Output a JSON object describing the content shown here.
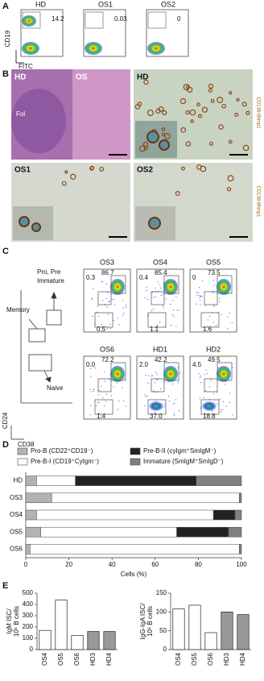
{
  "panel_a": {
    "label": "A",
    "y_label": "CD19",
    "x_label": "FITC",
    "plots": [
      {
        "title": "HD",
        "gate": "14.2"
      },
      {
        "title": "OS1",
        "gate": "0.03"
      },
      {
        "title": "OS2",
        "gate": "0"
      }
    ]
  },
  "panel_b": {
    "label": "B",
    "he_left": "HD",
    "he_right": "OS",
    "fol": "Fol",
    "ihc_hd": "HD",
    "ihc_os1": "OS1",
    "ihc_os2": "OS2",
    "stain_top": "CD138-Blimp1",
    "stain_bottom": "CD138-Blimp1"
  },
  "panel_c": {
    "label": "C",
    "schematic": {
      "top": "Pro, Pre",
      "top2": "Immature",
      "memory": "Memory",
      "naive": "Naive",
      "y_axis": "CD24",
      "x_axis": "CD38"
    },
    "plots": [
      {
        "title": "OS3",
        "top_left": "0.3",
        "top_right": "86.7",
        "bottom": "0.5"
      },
      {
        "title": "OS4",
        "top_left": "0.4",
        "top_right": "85.4",
        "bottom": "1.1"
      },
      {
        "title": "OS5",
        "top_left": "0",
        "top_right": "73.5",
        "bottom": "1.6"
      },
      {
        "title": "OS6",
        "top_left": "0.0",
        "top_right": "72.2",
        "bottom": "1.4"
      },
      {
        "title": "HD1",
        "top_left": "2.0",
        "top_right": "42.2",
        "bottom": "37.0"
      },
      {
        "title": "HD2",
        "top_left": "4.5",
        "top_right": "49.5",
        "bottom": "18.8"
      }
    ]
  },
  "chart_data": [
    {
      "type": "stackedbar",
      "panel": "D",
      "categories": [
        "HD",
        "OS3",
        "OS4",
        "OS5",
        "OS6"
      ],
      "series": [
        {
          "name": "Pro-B (CD22⁺CD19⁻)",
          "color": "#b3b3b3",
          "values": [
            5,
            12,
            5,
            7,
            2
          ]
        },
        {
          "name": "Pre-B-I (CD19⁺CyIgm⁻)",
          "color": "#ffffff",
          "values": [
            18,
            87,
            82,
            63,
            97
          ]
        },
        {
          "name": "Pre-B-II (cyIgm⁺SmIgM⁻)",
          "color": "#222222",
          "values": [
            56,
            0,
            10,
            24,
            0
          ]
        },
        {
          "name": "Immature (SmIgM⁺SmIgD⁻)",
          "color": "#808080",
          "values": [
            21,
            1,
            3,
            6,
            1
          ]
        }
      ],
      "xlim": [
        0,
        100
      ],
      "xticks": [
        0,
        20,
        40,
        60,
        80,
        100
      ],
      "x_label": "Cells (%)"
    },
    {
      "type": "bar",
      "panel": "E",
      "categories": [
        "OS4",
        "OS5",
        "OS6",
        "HD3",
        "HD4"
      ],
      "values": [
        170,
        440,
        125,
        160,
        160
      ],
      "colors": [
        "#ffffff",
        "#ffffff",
        "#ffffff",
        "#999999",
        "#999999"
      ],
      "ylim": [
        0,
        500
      ],
      "yticks": [
        0,
        100,
        200,
        300,
        400,
        500
      ],
      "y_label": [
        "IgM ISC/",
        "10⁵ B cells"
      ]
    },
    {
      "type": "bar",
      "categories": [
        "OS4",
        "OS5",
        "OS6",
        "HD3",
        "HD4"
      ],
      "values": [
        108,
        118,
        45,
        100,
        93
      ],
      "colors": [
        "#ffffff",
        "#ffffff",
        "#ffffff",
        "#999999",
        "#999999"
      ],
      "ylim": [
        0,
        150
      ],
      "yticks": [
        0,
        50,
        100,
        150
      ],
      "y_label": [
        "IgG-IgA ISC/",
        "10⁵ B cells"
      ]
    }
  ]
}
